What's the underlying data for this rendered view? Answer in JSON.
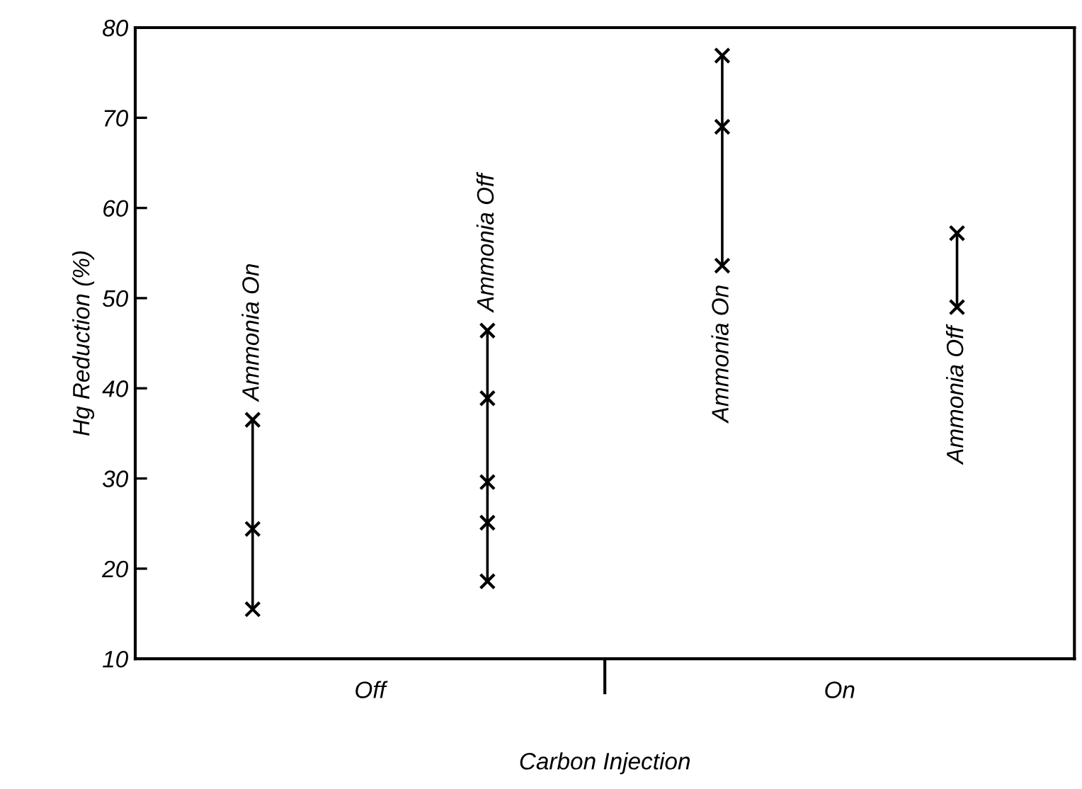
{
  "chart_data": {
    "type": "scatter",
    "xlabel": "Carbon Injection",
    "ylabel": "Hg Reduction (%)",
    "categories": [
      "Ammonia On",
      "Ammonia Off",
      "Ammonia On",
      "Ammonia Off"
    ],
    "annotations": [
      "Off",
      "On"
    ],
    "series": [
      {
        "color": "#000000",
        "values": [
          15.5,
          18.6,
          53.6,
          49.0
        ]
      },
      {
        "color": "#000000",
        "values": [
          24.4,
          25.1,
          69.0,
          57.2
        ]
      },
      {
        "color": "#000000",
        "values": [
          36.5,
          29.6,
          76.9,
          null
        ]
      },
      {
        "color": "#000000",
        "values": [
          null,
          38.9,
          null,
          null
        ]
      },
      {
        "color": "#000000",
        "values": [
          null,
          46.4,
          null,
          null
        ]
      }
    ],
    "ylim": [
      10,
      80
    ],
    "yticks": [
      10,
      20,
      30,
      40,
      50,
      60,
      70,
      80
    ],
    "marker": "cross",
    "grid": false
  }
}
